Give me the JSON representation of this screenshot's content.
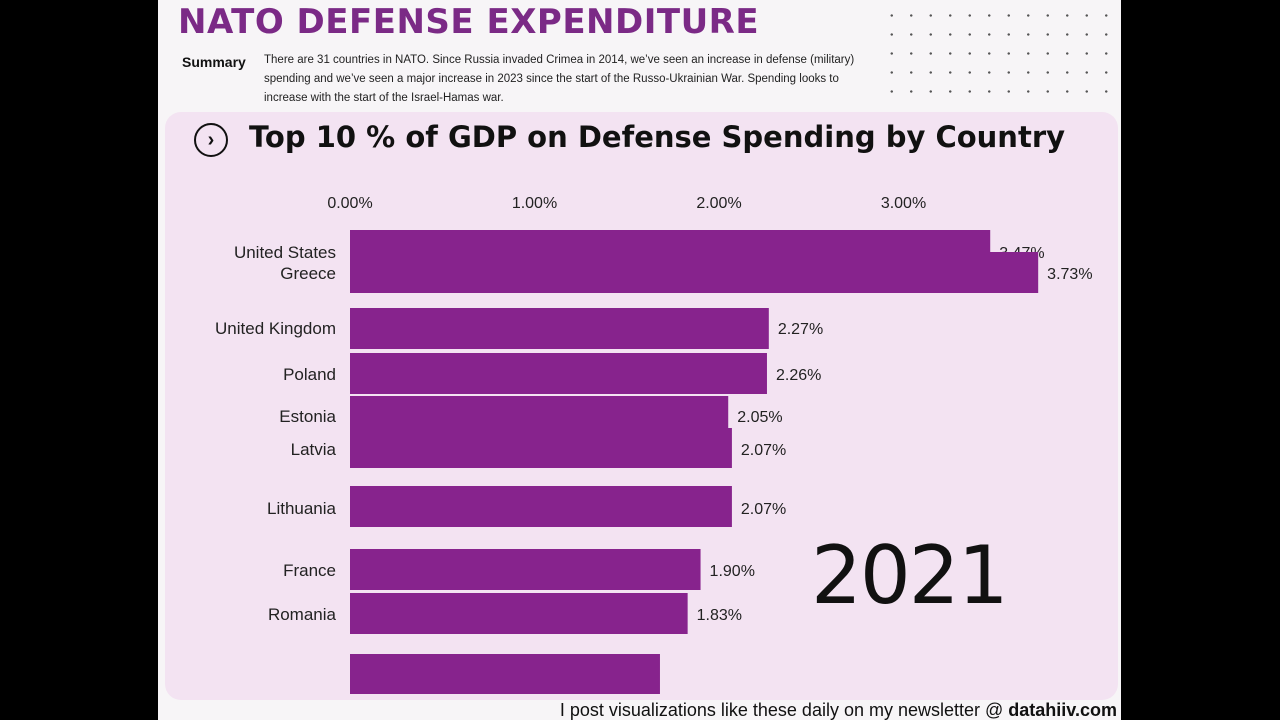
{
  "header": {
    "title": "NATO DEFENSE EXPENDITURE",
    "summary_label": "Summary",
    "summary_text": "There are 31 countries in NATO. Since Russia invaded Crimea in 2014, we’ve seen an increase in defense (military) spending and we’ve seen a major increase in 2023 since the start of the Russo-Ukrainian War. Spending looks to increase with the start of the Israel-Hamas war."
  },
  "chart": {
    "icon": "chevron-right-circle-icon",
    "year": "2021"
  },
  "footer": {
    "text": "I post visualizations like these daily on my newsletter @ ",
    "handle": "datahiiv.com"
  },
  "colors": {
    "bar": "#87238d",
    "card": "#f3e3f2",
    "title": "#7b2a86"
  },
  "chart_data": {
    "type": "bar",
    "orientation": "horizontal",
    "title": "Top 10 % of GDP on Defense Spending by Country",
    "tick_labels": [
      "0.00%",
      "1.00%",
      "2.00%",
      "3.00%"
    ],
    "xlim": [
      0,
      3.73
    ],
    "grid": false,
    "categories": [
      "United States",
      "Greece",
      "United Kingdom",
      "Poland",
      "Estonia",
      "Latvia",
      "Lithuania",
      "France",
      "Romania"
    ],
    "values": [
      3.47,
      3.73,
      2.27,
      2.26,
      2.05,
      2.07,
      2.07,
      1.9,
      1.83
    ],
    "value_labels": [
      "3.47%",
      "3.73%",
      "2.27%",
      "2.26%",
      "2.05%",
      "2.07%",
      "2.07%",
      "1.90%",
      "1.83%"
    ],
    "partial_bar_value": 1.68
  }
}
